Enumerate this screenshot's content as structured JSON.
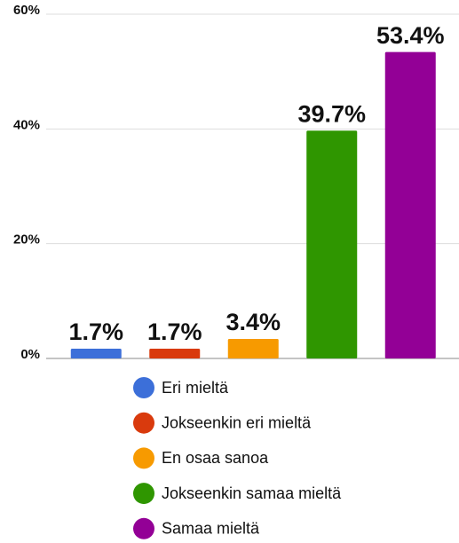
{
  "chart_data": {
    "type": "bar",
    "categories": [
      "Eri mieltä",
      "Jokseenkin eri mieltä",
      "En osaa sanoa",
      "Jokseenkin samaa mieltä",
      "Samaa mieltä"
    ],
    "values": [
      1.7,
      1.7,
      3.4,
      39.7,
      53.4
    ],
    "value_labels": [
      "1.7%",
      "1.7%",
      "3.4%",
      "39.7%",
      "53.4%"
    ],
    "colors": [
      "#3c6fd9",
      "#d93a0d",
      "#f79a00",
      "#2f9600",
      "#930096"
    ],
    "ylim": [
      0,
      60
    ],
    "yticks": [
      {
        "value": 0,
        "label": "0%"
      },
      {
        "value": 20,
        "label": "20%"
      },
      {
        "value": 40,
        "label": "40%"
      },
      {
        "value": 60,
        "label": "60%"
      }
    ],
    "grid": true
  }
}
